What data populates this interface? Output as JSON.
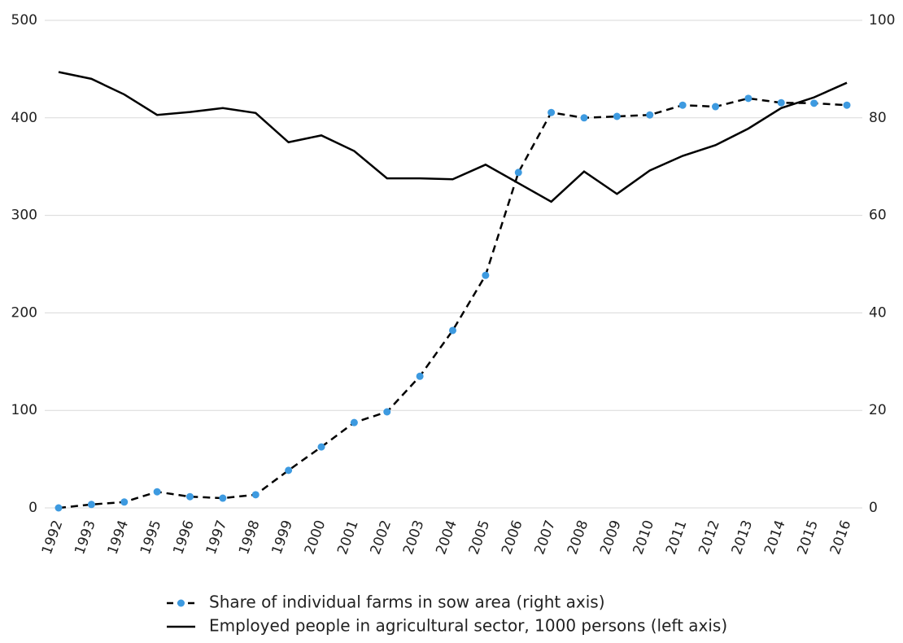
{
  "chart_data": {
    "type": "line",
    "categories": [
      "1992",
      "1993",
      "1994",
      "1995",
      "1996",
      "1997",
      "1998",
      "1999",
      "2000",
      "2001",
      "2002",
      "2003",
      "2004",
      "2005",
      "2006",
      "2007",
      "2008",
      "2009",
      "2010",
      "2011",
      "2012",
      "2013",
      "2014",
      "2015",
      "2016"
    ],
    "series": [
      {
        "name": "Share of individual farms in sow area (right axis)",
        "color": "#000000",
        "line_style": "dashed",
        "marker_color": "#3d9ae0",
        "axis": "y2",
        "values": [
          0,
          0.7,
          1.2,
          3.3,
          2.3,
          2.0,
          2.7,
          7.7,
          12.5,
          17.5,
          19.7,
          27.0,
          36.4,
          47.7,
          68.8,
          81.1,
          80.0,
          80.3,
          80.6,
          82.6,
          82.3,
          84.0,
          83.1,
          83.0,
          82.6
        ]
      },
      {
        "name": "Employed people in agricultural sector, 1000 persons (left axis)",
        "color": "#000000",
        "line_style": "solid",
        "axis": "y",
        "values": [
          447,
          440,
          424,
          403,
          406,
          410,
          405,
          375,
          382,
          366,
          338,
          338,
          337,
          352,
          333,
          314,
          345,
          322,
          346,
          361,
          372,
          389,
          410,
          421,
          436
        ]
      }
    ],
    "ylim": [
      0,
      500
    ],
    "yticks": [
      0,
      100,
      200,
      300,
      400,
      500
    ],
    "y2lim": [
      0,
      100
    ],
    "y2ticks": [
      0,
      20,
      40,
      60,
      80,
      100
    ],
    "grid": true,
    "legend": "bottom"
  }
}
